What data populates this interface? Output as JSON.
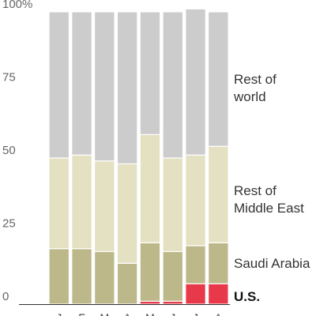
{
  "chart_data": {
    "type": "bar",
    "stacked": true,
    "categories": [
      "J",
      "F",
      "M",
      "A",
      "M",
      "J",
      "J",
      "A"
    ],
    "ylim": [
      0,
      100
    ],
    "yticks": [
      0,
      25,
      50,
      75,
      100
    ],
    "ytick_labels": [
      "0",
      "25",
      "50",
      "75",
      "100%"
    ],
    "grid": false,
    "series": [
      {
        "name": "U.S.",
        "color": "#e8394a",
        "values": [
          0,
          0,
          0,
          0,
          1,
          1,
          7,
          7
        ]
      },
      {
        "name": "Saudi Arabia",
        "color": "#bdb88a",
        "values": [
          19,
          19,
          18,
          14,
          20,
          17,
          13,
          14
        ]
      },
      {
        "name": "Rest of Middle East",
        "color": "#e4e0c2",
        "values": [
          31,
          32,
          31,
          34,
          37,
          32,
          31,
          33
        ]
      },
      {
        "name": "Rest of world",
        "color": "#cccccc",
        "values": [
          50,
          49,
          51,
          52,
          42,
          50,
          50,
          46
        ]
      }
    ],
    "legend": {
      "placement": "right",
      "labels": [
        {
          "lines": [
            "Rest of",
            "world"
          ],
          "series": "Rest of world"
        },
        {
          "lines": [
            "Rest of",
            "Middle East"
          ],
          "series": "Rest of Middle East"
        },
        {
          "lines": [
            "Saudi Arabia"
          ],
          "series": "Saudi Arabia"
        },
        {
          "lines": [
            "U.S."
          ],
          "series": "U.S.",
          "bold": true
        }
      ]
    }
  }
}
